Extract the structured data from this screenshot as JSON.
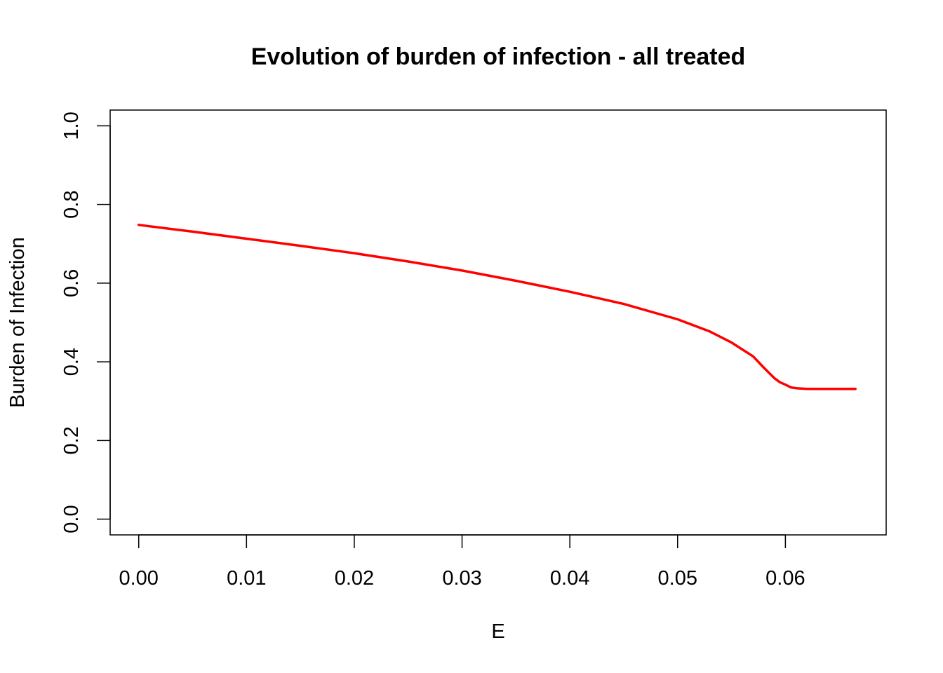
{
  "chart_data": {
    "type": "line",
    "title": "Evolution of burden of infection - all treated",
    "xlabel": "E",
    "ylabel": "Burden of Infection",
    "xlim": [
      -0.00265,
      0.06935
    ],
    "ylim": [
      -0.04,
      1.04
    ],
    "x_ticks": [
      "0.00",
      "0.01",
      "0.02",
      "0.03",
      "0.04",
      "0.05",
      "0.06"
    ],
    "y_ticks": [
      "0.0",
      "0.2",
      "0.4",
      "0.6",
      "0.8",
      "1.0"
    ],
    "grid": false,
    "legend": "none",
    "series": [
      {
        "color": "#ff0000",
        "x": [
          0.0,
          0.005,
          0.01,
          0.015,
          0.02,
          0.025,
          0.03,
          0.035,
          0.04,
          0.045,
          0.05,
          0.053,
          0.055,
          0.057,
          0.058,
          0.059,
          0.0595,
          0.06,
          0.0605,
          0.061,
          0.062,
          0.063,
          0.064,
          0.065,
          0.0665
        ],
        "y": [
          0.748,
          0.731,
          0.713,
          0.695,
          0.676,
          0.655,
          0.632,
          0.606,
          0.578,
          0.547,
          0.508,
          0.477,
          0.449,
          0.414,
          0.385,
          0.358,
          0.348,
          0.342,
          0.335,
          0.333,
          0.331,
          0.331,
          0.331,
          0.331,
          0.331
        ]
      }
    ]
  }
}
